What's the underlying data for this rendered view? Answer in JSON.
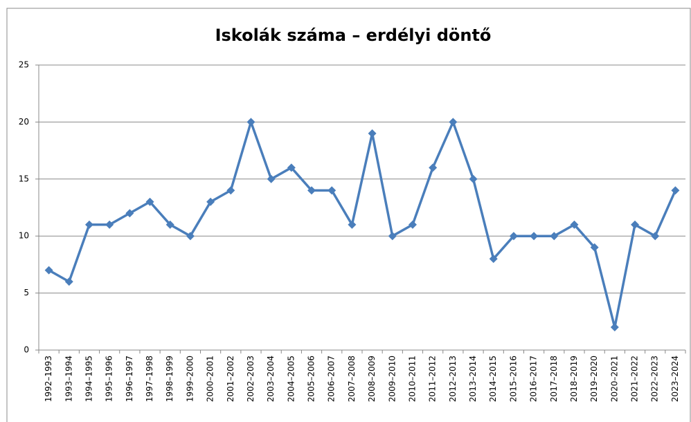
{
  "chart_data": {
    "type": "line",
    "title": "Iskolák száma – erdélyi döntő",
    "categories": [
      "1992–1993",
      "1993–1994",
      "1994–1995",
      "1995–1996",
      "1996–1997",
      "1997–1998",
      "1998–1999",
      "1999–2000",
      "2000–2001",
      "2001–2002",
      "2002–2003",
      "2003–2004",
      "2004–2005",
      "2005–2006",
      "2006–2007",
      "2007–2008",
      "2008–2009",
      "2009–2010",
      "2010–2011",
      "2011–2012",
      "2012–2013",
      "2013–2014",
      "2014–2015",
      "2015–2016",
      "2016–2017",
      "2017–2018",
      "2018–2019",
      "2019–2020",
      "2020–2021",
      "2021–2022",
      "2022–2023",
      "2023–2024"
    ],
    "values": [
      7,
      6,
      11,
      11,
      12,
      13,
      11,
      10,
      13,
      14,
      20,
      15,
      16,
      14,
      14,
      11,
      19,
      10,
      11,
      16,
      20,
      15,
      8,
      10,
      10,
      10,
      11,
      9,
      2,
      11,
      10,
      14
    ],
    "color": "#4a7ebb",
    "ylim": [
      0,
      25
    ],
    "yticks": [
      0,
      5,
      10,
      15,
      20,
      25
    ],
    "grid": true
  }
}
